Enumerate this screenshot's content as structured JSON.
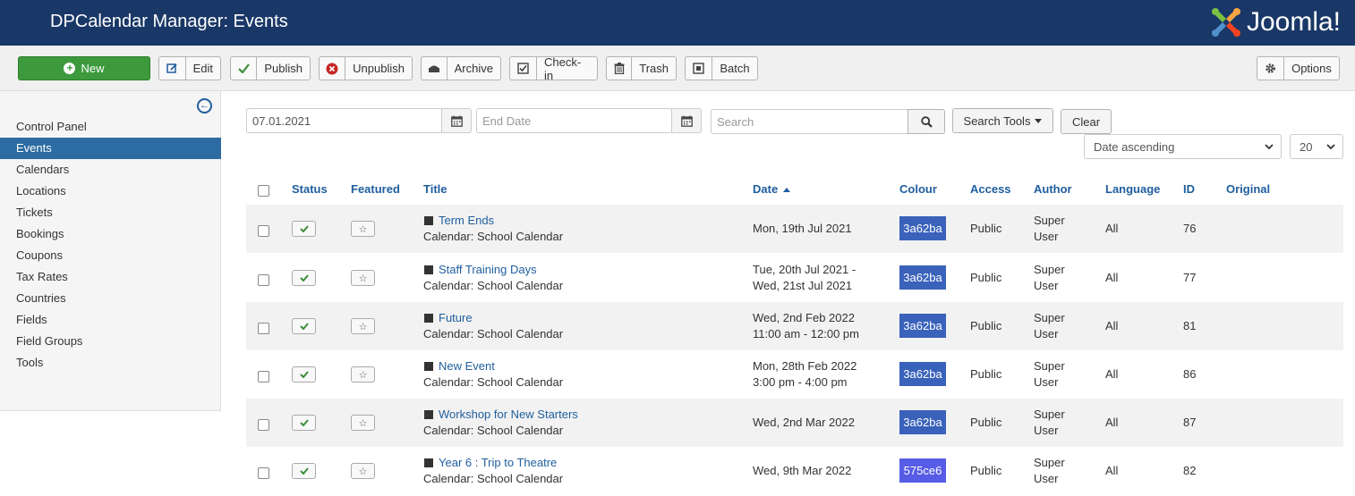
{
  "header": {
    "title": "DPCalendar Manager: Events",
    "brand": "Joomla!"
  },
  "toolbar": {
    "new": "New",
    "edit": "Edit",
    "publish": "Publish",
    "unpublish": "Unpublish",
    "archive": "Archive",
    "checkin": "Check-in",
    "trash": "Trash",
    "batch": "Batch",
    "options": "Options"
  },
  "sidebar": {
    "items": [
      "Control Panel",
      "Events",
      "Calendars",
      "Locations",
      "Tickets",
      "Bookings",
      "Coupons",
      "Tax Rates",
      "Countries",
      "Fields",
      "Field Groups",
      "Tools"
    ],
    "active": "Events"
  },
  "filters": {
    "start_date": "07.01.2021",
    "end_placeholder": "End Date",
    "search_placeholder": "Search",
    "search_tools": "Search Tools",
    "clear": "Clear",
    "ordering": "Date ascending",
    "limit": "20"
  },
  "table": {
    "headers": {
      "status": "Status",
      "featured": "Featured",
      "title": "Title",
      "date": "Date",
      "colour": "Colour",
      "access": "Access",
      "author": "Author",
      "language": "Language",
      "id": "ID",
      "original": "Original"
    },
    "rows": [
      {
        "title": "Term Ends",
        "calendar": "Calendar: School Calendar",
        "date1": "Mon, 19th Jul 2021",
        "date2": "",
        "colour": "3a62ba",
        "colour_hex": "#3a62ba",
        "access": "Public",
        "author1": "Super",
        "author2": "User",
        "language": "All",
        "id": "76"
      },
      {
        "title": "Staff Training Days",
        "calendar": "Calendar: School Calendar",
        "date1": "Tue, 20th Jul 2021 -",
        "date2": "Wed, 21st Jul 2021",
        "colour": "3a62ba",
        "colour_hex": "#3a62ba",
        "access": "Public",
        "author1": "Super",
        "author2": "User",
        "language": "All",
        "id": "77"
      },
      {
        "title": "Future",
        "calendar": "Calendar: School Calendar",
        "date1": "Wed, 2nd Feb 2022",
        "date2": "11:00 am - 12:00 pm",
        "colour": "3a62ba",
        "colour_hex": "#3a62ba",
        "access": "Public",
        "author1": "Super",
        "author2": "User",
        "language": "All",
        "id": "81"
      },
      {
        "title": "New Event",
        "calendar": "Calendar: School Calendar",
        "date1": "Mon, 28th Feb 2022",
        "date2": "3:00 pm - 4:00 pm",
        "colour": "3a62ba",
        "colour_hex": "#3a62ba",
        "access": "Public",
        "author1": "Super",
        "author2": "User",
        "language": "All",
        "id": "86"
      },
      {
        "title": "Workshop for New Starters",
        "calendar": "Calendar: School Calendar",
        "date1": "Wed, 2nd Mar 2022",
        "date2": "",
        "colour": "3a62ba",
        "colour_hex": "#3a62ba",
        "access": "Public",
        "author1": "Super",
        "author2": "User",
        "language": "All",
        "id": "87"
      },
      {
        "title": "Year 6 : Trip to Theatre",
        "calendar": "Calendar: School Calendar",
        "date1": "Wed, 9th Mar 2022",
        "date2": "",
        "colour": "575ce6",
        "colour_hex": "#575ce6",
        "access": "Public",
        "author1": "Super",
        "author2": "User",
        "language": "All",
        "id": "82"
      }
    ]
  },
  "colors": {
    "header_bg": "#1a3867",
    "new_button": "#3c9a3c",
    "sidebar_active": "#2d6ca2",
    "link": "#1f5e9e"
  }
}
